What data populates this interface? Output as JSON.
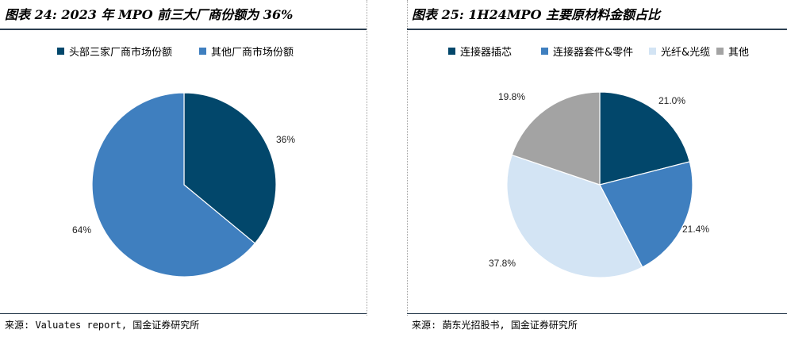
{
  "left": {
    "title": "图表 24: 2023 年 MPO 前三大厂商份额为 36%",
    "source": "来源: Valuates report, 国金证券研究所"
  },
  "right": {
    "title": "图表 25: 1H24MPO 主要原材料金额占比",
    "source": "来源: 蓢东光招股书, 国金证券研究所"
  },
  "chart_data": [
    {
      "type": "pie",
      "title": "",
      "slices": [
        {
          "label": "头部三家厂商市场份额",
          "value": 36,
          "display": "36%",
          "color": "#02476b"
        },
        {
          "label": "其他厂商市场份额",
          "value": 64,
          "display": "64%",
          "color": "#3f7fbf"
        }
      ],
      "start_angle_deg": 0,
      "direction": "clockwise",
      "legend_position": "top"
    },
    {
      "type": "pie",
      "title": "",
      "slices": [
        {
          "label": "连接器插芯",
          "value": 21.0,
          "display": "21.0%",
          "color": "#02476b"
        },
        {
          "label": "连接器套件&零件",
          "value": 21.4,
          "display": "21.4%",
          "color": "#3f7fbf"
        },
        {
          "label": "光纤&光缆",
          "value": 37.8,
          "display": "37.8%",
          "color": "#d3e4f4"
        },
        {
          "label": "其他",
          "value": 19.8,
          "display": "19.8%",
          "color": "#a3a3a3"
        }
      ],
      "start_angle_deg": 0,
      "direction": "clockwise",
      "legend_position": "top"
    }
  ]
}
